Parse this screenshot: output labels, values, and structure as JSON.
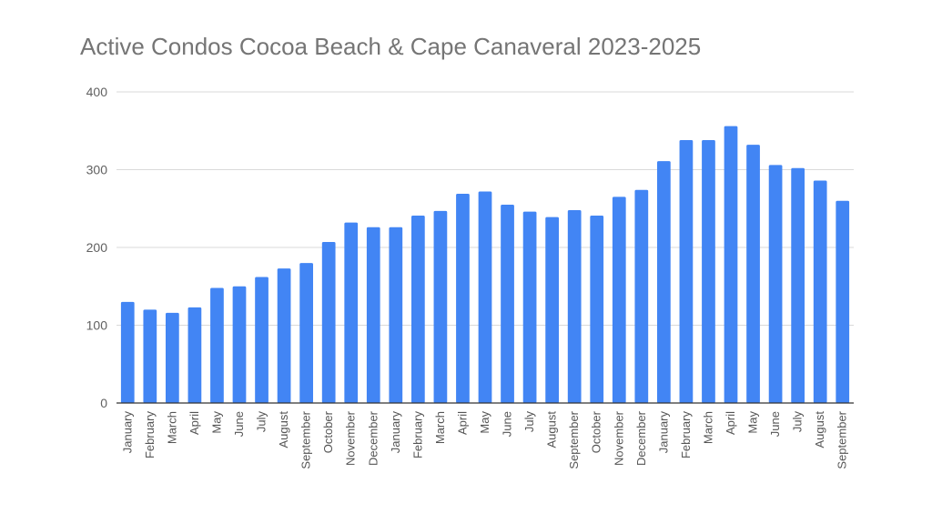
{
  "chart_data": {
    "type": "bar",
    "title": "Active Condos Cocoa Beach & Cape Canaveral 2023-2025",
    "xlabel": "",
    "ylabel": "",
    "ylim": [
      0,
      400
    ],
    "yticks": [
      "0",
      "100",
      "200",
      "300",
      "400"
    ],
    "grid": true,
    "bar_color": "#4285f4",
    "categories": [
      "January",
      "February",
      "March",
      "April",
      "May",
      "June",
      "July",
      "August",
      "September",
      "October",
      "November",
      "December",
      "January",
      "February",
      "March",
      "April",
      "May",
      "June",
      "July",
      "August",
      "September",
      "October",
      "November",
      "December",
      "January",
      "February",
      "March",
      "April",
      "May",
      "June",
      "July",
      "August",
      "September"
    ],
    "values": [
      130,
      120,
      116,
      123,
      148,
      150,
      162,
      173,
      180,
      207,
      232,
      226,
      226,
      241,
      247,
      269,
      272,
      255,
      246,
      239,
      248,
      241,
      265,
      274,
      311,
      338,
      338,
      356,
      332,
      306,
      302,
      286,
      260
    ]
  }
}
